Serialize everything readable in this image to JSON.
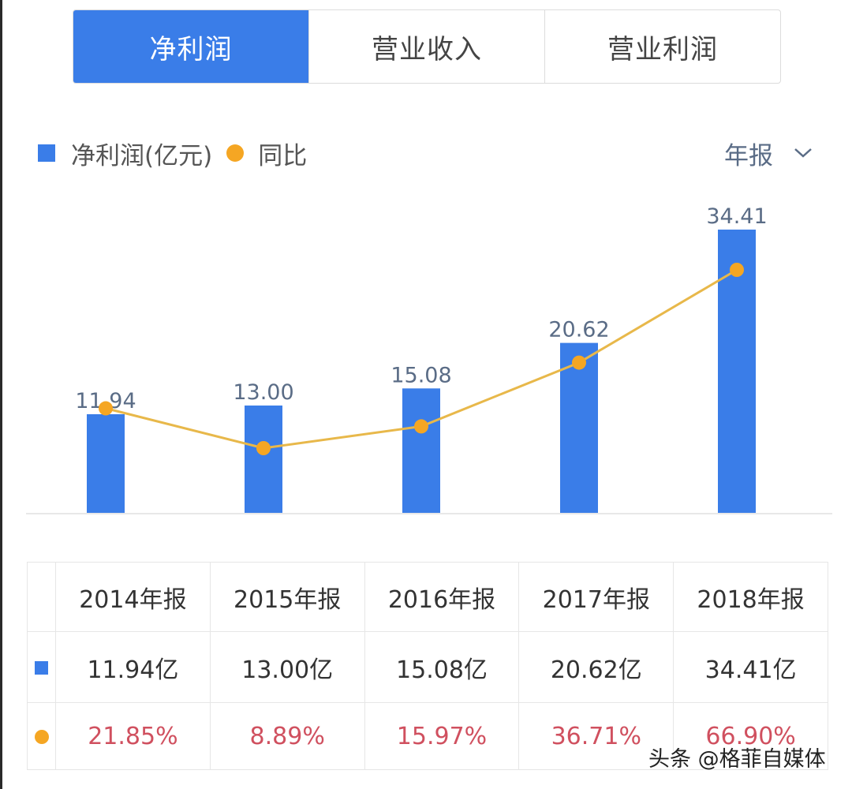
{
  "tabs": [
    {
      "label": "净利润",
      "active": true
    },
    {
      "label": "营业收入",
      "active": false
    },
    {
      "label": "营业利润",
      "active": false
    }
  ],
  "legend": {
    "bar_label": "净利润(亿元)",
    "line_label": "同比"
  },
  "period_selector": {
    "label": "年报",
    "icon": "chevron-down-icon"
  },
  "colors": {
    "accent": "#3a7de8",
    "line": "#f5a623",
    "growth_text": "#d0505f",
    "value_label": "#5a6c86"
  },
  "chart_data": {
    "type": "bar",
    "title": "净利润",
    "categories": [
      "2014年报",
      "2015年报",
      "2016年报",
      "2017年报",
      "2018年报"
    ],
    "series": [
      {
        "name": "净利润(亿元)",
        "type": "bar",
        "values": [
          11.94,
          13.0,
          15.08,
          20.62,
          34.41
        ]
      },
      {
        "name": "同比",
        "type": "line",
        "values": [
          21.85,
          8.89,
          15.97,
          36.71,
          66.9
        ],
        "unit": "%"
      }
    ],
    "data_labels": [
      "11.94",
      "13.00",
      "15.08",
      "20.62",
      "34.41"
    ],
    "xlabel": "",
    "ylabel": "",
    "grid": false,
    "legend_position": "top-left"
  },
  "table": {
    "headers": [
      "2014年报",
      "2015年报",
      "2016年报",
      "2017年报",
      "2018年报"
    ],
    "net_profit_row": [
      "11.94亿",
      "13.00亿",
      "15.08亿",
      "20.62亿",
      "34.41亿"
    ],
    "yoy_row": [
      "21.85%",
      "8.89%",
      "15.97%",
      "36.71%",
      "66.90%"
    ]
  },
  "watermark": "头条 @格菲自媒体"
}
